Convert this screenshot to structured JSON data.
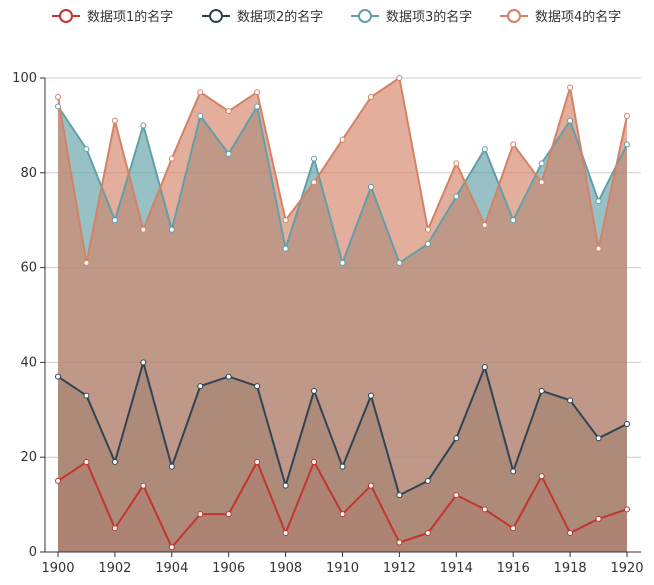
{
  "chart_data": {
    "type": "area",
    "x": [
      1900,
      1901,
      1902,
      1903,
      1904,
      1905,
      1906,
      1907,
      1908,
      1909,
      1910,
      1911,
      1912,
      1913,
      1914,
      1915,
      1916,
      1917,
      1918,
      1919,
      1920
    ],
    "x_ticks": [
      1900,
      1902,
      1904,
      1906,
      1908,
      1910,
      1912,
      1914,
      1916,
      1918,
      1920
    ],
    "ylim": [
      0,
      100
    ],
    "y_ticks": [
      0,
      20,
      40,
      60,
      80,
      100
    ],
    "grid": true,
    "legend_position": "top",
    "series": [
      {
        "name": "数据项1的名字",
        "color": "#c23531",
        "values": [
          15,
          19,
          5,
          14,
          1,
          8,
          8,
          19,
          4,
          19,
          8,
          14,
          2,
          4,
          12,
          9,
          5,
          16,
          4,
          7,
          9
        ]
      },
      {
        "name": "数据项2的名字",
        "color": "#2f4554",
        "values": [
          37,
          33,
          19,
          40,
          18,
          35,
          37,
          35,
          14,
          34,
          18,
          33,
          12,
          15,
          24,
          39,
          17,
          34,
          32,
          24,
          27
        ]
      },
      {
        "name": "数据项3的名字",
        "color": "#61a0a8",
        "values": [
          94,
          85,
          70,
          90,
          68,
          92,
          84,
          94,
          64,
          83,
          61,
          77,
          61,
          65,
          75,
          85,
          70,
          82,
          91,
          74,
          86
        ]
      },
      {
        "name": "数据项4的名字",
        "color": "#d48265",
        "values": [
          96,
          61,
          91,
          68,
          83,
          97,
          93,
          97,
          70,
          78,
          87,
          96,
          100,
          68,
          82,
          69,
          86,
          78,
          98,
          64,
          92
        ]
      }
    ]
  }
}
